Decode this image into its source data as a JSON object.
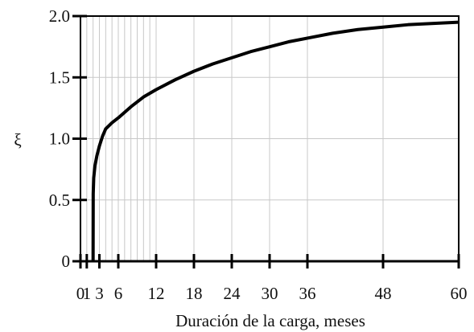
{
  "chart_data": {
    "type": "line",
    "xlabel": "Duración de la carga, meses",
    "ylabel": "ξ",
    "xlim": [
      0,
      60
    ],
    "ylim": [
      0,
      2.0
    ],
    "x_ticks": [
      {
        "value": 0,
        "label": "0"
      },
      {
        "value": 1,
        "label": "1"
      },
      {
        "value": 3,
        "label": "3"
      },
      {
        "value": 6,
        "label": "6"
      },
      {
        "value": 12,
        "label": "12"
      },
      {
        "value": 18,
        "label": "18"
      },
      {
        "value": 24,
        "label": "24"
      },
      {
        "value": 30,
        "label": "30"
      },
      {
        "value": 36,
        "label": "36"
      },
      {
        "value": 48,
        "label": "48"
      },
      {
        "value": 60,
        "label": "60"
      }
    ],
    "y_ticks": [
      {
        "value": 0,
        "label": "0"
      },
      {
        "value": 0.5,
        "label": "0.5"
      },
      {
        "value": 1.0,
        "label": "1.0"
      },
      {
        "value": 1.5,
        "label": "1.5"
      },
      {
        "value": 2.0,
        "label": "2.0"
      }
    ],
    "x_minor_grid": [
      2,
      4,
      5,
      7,
      8,
      9,
      10,
      11
    ],
    "grid": true,
    "legend": "none",
    "series": [
      {
        "color": "#000000",
        "x": [
          2,
          2.02,
          2.1,
          2.3,
          2.6,
          3,
          3.5,
          4,
          5,
          6,
          8,
          10,
          12,
          15,
          18,
          21,
          24,
          27,
          30,
          33,
          36,
          40,
          44,
          48,
          52,
          56,
          60
        ],
        "y": [
          0,
          0.55,
          0.68,
          0.78,
          0.86,
          0.94,
          1.02,
          1.08,
          1.13,
          1.17,
          1.26,
          1.34,
          1.4,
          1.48,
          1.55,
          1.61,
          1.66,
          1.71,
          1.75,
          1.79,
          1.82,
          1.86,
          1.89,
          1.91,
          1.93,
          1.94,
          1.95
        ]
      }
    ]
  }
}
